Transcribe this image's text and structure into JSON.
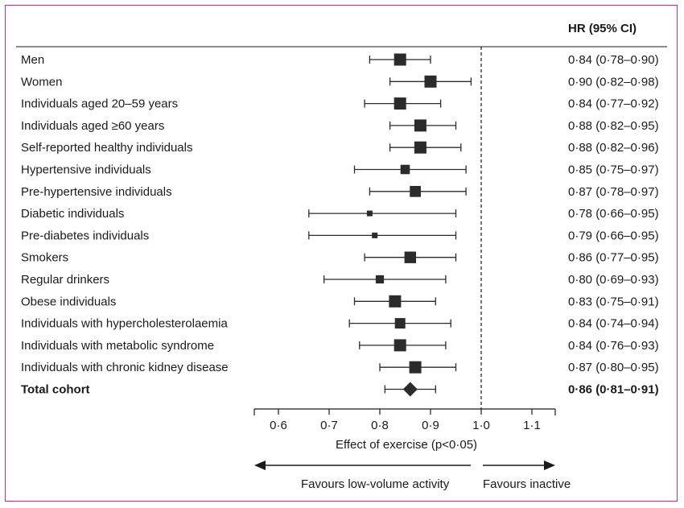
{
  "chart_data": {
    "type": "forest",
    "column_header": "HR (95% CI)",
    "xlabel": "Effect of exercise (p<0·05)",
    "xlim": [
      0.55,
      1.15
    ],
    "xticks": [
      0.6,
      0.7,
      0.8,
      0.9,
      1.0,
      1.1
    ],
    "xtick_labels": [
      "0·6",
      "0·7",
      "0·8",
      "0·9",
      "1·0",
      "1·1"
    ],
    "reference_line": 1.0,
    "favours_left": "Favours low-volume activity",
    "favours_right": "Favours inactive",
    "rows": [
      {
        "label": "Men",
        "hr": 0.84,
        "lo": 0.78,
        "hi": 0.9,
        "ci_text": "0·84 (0·78–0·90)"
      },
      {
        "label": "Women",
        "hr": 0.9,
        "lo": 0.82,
        "hi": 0.98,
        "ci_text": "0·90 (0·82–0·98)"
      },
      {
        "label": "Individuals aged 20–59 years",
        "hr": 0.84,
        "lo": 0.77,
        "hi": 0.92,
        "ci_text": "0·84 (0·77–0·92)"
      },
      {
        "label": "Individuals aged ≥60 years",
        "hr": 0.88,
        "lo": 0.82,
        "hi": 0.95,
        "ci_text": "0·88 (0·82–0·95)"
      },
      {
        "label": "Self-reported healthy individuals",
        "hr": 0.88,
        "lo": 0.82,
        "hi": 0.96,
        "ci_text": "0·88 (0·82–0·96)"
      },
      {
        "label": "Hypertensive individuals",
        "hr": 0.85,
        "lo": 0.75,
        "hi": 0.97,
        "ci_text": "0·85 (0·75–0·97)"
      },
      {
        "label": "Pre-hypertensive individuals",
        "hr": 0.87,
        "lo": 0.78,
        "hi": 0.97,
        "ci_text": "0·87 (0·78–0·97)"
      },
      {
        "label": "Diabetic individuals",
        "hr": 0.78,
        "lo": 0.66,
        "hi": 0.95,
        "ci_text": "0·78 (0·66–0·95)"
      },
      {
        "label": "Pre-diabetes individuals",
        "hr": 0.79,
        "lo": 0.66,
        "hi": 0.95,
        "ci_text": "0·79 (0·66–0·95)"
      },
      {
        "label": "Smokers",
        "hr": 0.86,
        "lo": 0.77,
        "hi": 0.95,
        "ci_text": "0·86 (0·77–0·95)"
      },
      {
        "label": "Regular drinkers",
        "hr": 0.8,
        "lo": 0.69,
        "hi": 0.93,
        "ci_text": "0·80 (0·69–0·93)"
      },
      {
        "label": "Obese individuals",
        "hr": 0.83,
        "lo": 0.75,
        "hi": 0.91,
        "ci_text": "0·83 (0·75–0·91)"
      },
      {
        "label": "Individuals with hypercholesterolaemia",
        "hr": 0.84,
        "lo": 0.74,
        "hi": 0.94,
        "ci_text": "0·84 (0·74–0·94)"
      },
      {
        "label": "Individuals with metabolic syndrome",
        "hr": 0.84,
        "lo": 0.76,
        "hi": 0.93,
        "ci_text": "0·84 (0·76–0·93)"
      },
      {
        "label": "Individuals with chronic kidney disease",
        "hr": 0.87,
        "lo": 0.8,
        "hi": 0.95,
        "ci_text": "0·87 (0·80–0·95)"
      }
    ],
    "total": {
      "label": "Total cohort",
      "hr": 0.86,
      "lo": 0.81,
      "hi": 0.91,
      "ci_text": "0·86 (0·81–0·91)"
    },
    "colors": {
      "marker": "#2b2b2b",
      "frame": "#c4376e",
      "text": "#1a1a1a"
    }
  }
}
